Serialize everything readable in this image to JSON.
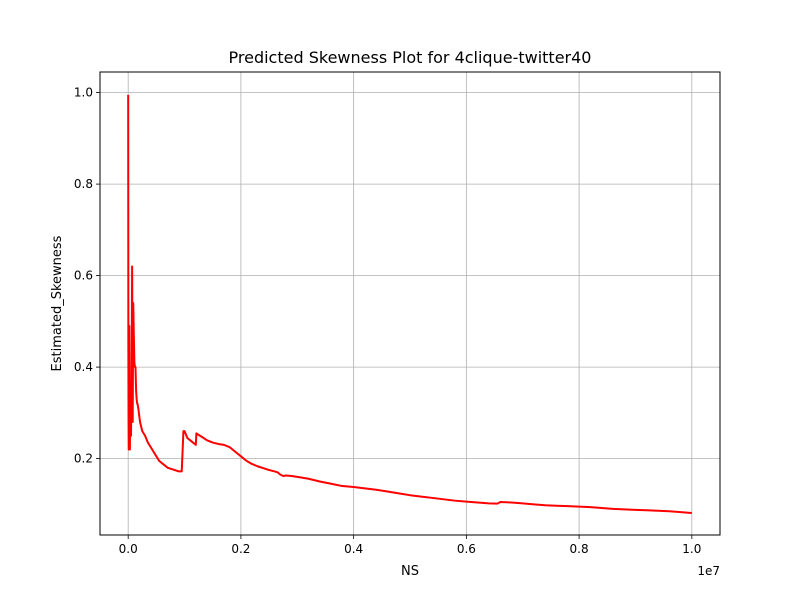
{
  "chart_data": {
    "type": "line",
    "title": "Predicted Skewness Plot for 4clique-twitter40",
    "xlabel": "NS",
    "ylabel": "Estimated_Skewness",
    "x_offset_label": "1e7",
    "xlim": [
      -0.05,
      1.05
    ],
    "ylim": [
      0.033,
      1.045
    ],
    "x_ticks": [
      0.0,
      0.2,
      0.4,
      0.6,
      0.8,
      1.0
    ],
    "x_tick_labels": [
      "0.0",
      "0.2",
      "0.4",
      "0.6",
      "0.8",
      "1.0"
    ],
    "y_ticks": [
      0.2,
      0.4,
      0.6,
      0.8,
      1.0
    ],
    "y_tick_labels": [
      "0.2",
      "0.4",
      "0.6",
      "0.8",
      "1.0"
    ],
    "grid": true,
    "line_color": "#ff0000",
    "series": [
      {
        "x": [
          0.0,
          0.0003,
          0.0006,
          0.001,
          0.0015,
          0.002,
          0.003,
          0.004,
          0.005,
          0.006,
          0.007,
          0.008,
          0.009,
          0.01,
          0.011,
          0.012,
          0.013,
          0.014,
          0.015,
          0.016,
          0.0165,
          0.018,
          0.019,
          0.02,
          0.021,
          0.022,
          0.023,
          0.024,
          0.025,
          0.03,
          0.035,
          0.04,
          0.045,
          0.05,
          0.055,
          0.06,
          0.065,
          0.07,
          0.075,
          0.08,
          0.085,
          0.09,
          0.095,
          0.098,
          0.099,
          0.1,
          0.105,
          0.11,
          0.115,
          0.12,
          0.121,
          0.122,
          0.13,
          0.14,
          0.15,
          0.16,
          0.17,
          0.18,
          0.19,
          0.2,
          0.21,
          0.22,
          0.23,
          0.24,
          0.25,
          0.26,
          0.265,
          0.27,
          0.275,
          0.28,
          0.29,
          0.3,
          0.32,
          0.34,
          0.36,
          0.38,
          0.4,
          0.42,
          0.44,
          0.46,
          0.48,
          0.5,
          0.52,
          0.54,
          0.56,
          0.58,
          0.6,
          0.62,
          0.64,
          0.655,
          0.66,
          0.68,
          0.7,
          0.72,
          0.74,
          0.76,
          0.78,
          0.8,
          0.82,
          0.84,
          0.86,
          0.88,
          0.9,
          0.92,
          0.94,
          0.96,
          0.98,
          1.0
        ],
        "y": [
          0.995,
          0.45,
          0.3,
          0.22,
          0.3,
          0.49,
          0.22,
          0.36,
          0.25,
          0.36,
          0.62,
          0.28,
          0.54,
          0.47,
          0.41,
          0.4,
          0.4,
          0.35,
          0.33,
          0.32,
          0.32,
          0.31,
          0.3,
          0.29,
          0.28,
          0.275,
          0.27,
          0.265,
          0.26,
          0.25,
          0.235,
          0.225,
          0.215,
          0.205,
          0.195,
          0.19,
          0.185,
          0.18,
          0.178,
          0.176,
          0.174,
          0.172,
          0.172,
          0.26,
          0.26,
          0.26,
          0.245,
          0.24,
          0.235,
          0.23,
          0.255,
          0.254,
          0.248,
          0.24,
          0.235,
          0.232,
          0.23,
          0.225,
          0.215,
          0.205,
          0.195,
          0.188,
          0.183,
          0.179,
          0.175,
          0.172,
          0.17,
          0.165,
          0.162,
          0.163,
          0.162,
          0.16,
          0.156,
          0.15,
          0.145,
          0.14,
          0.138,
          0.135,
          0.132,
          0.128,
          0.124,
          0.12,
          0.117,
          0.114,
          0.111,
          0.108,
          0.106,
          0.104,
          0.102,
          0.1015,
          0.105,
          0.104,
          0.102,
          0.1,
          0.098,
          0.097,
          0.096,
          0.095,
          0.094,
          0.092,
          0.09,
          0.089,
          0.088,
          0.087,
          0.086,
          0.085,
          0.083,
          0.081
        ]
      }
    ]
  }
}
